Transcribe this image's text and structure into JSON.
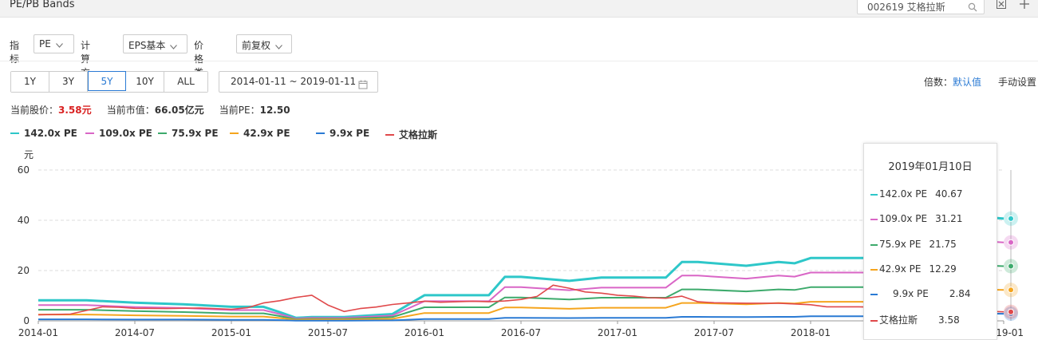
{
  "header": {
    "title": "PE/PB Bands",
    "search_value": "002619 艾格拉斯"
  },
  "controls": {
    "indicator_label": "指标",
    "indicator_value": "PE",
    "method_label": "计算方式",
    "method_value": "EPS基本",
    "price_label": "价格类型",
    "price_value": "前复权"
  },
  "ranges": [
    "1Y",
    "3Y",
    "5Y",
    "10Y",
    "ALL"
  ],
  "active_range": "5Y",
  "date_range": "2014-01-11 ~ 2019-01-11",
  "multiplier": {
    "label": "倍数：",
    "value": "默认值",
    "manual": "手动设置"
  },
  "stats": {
    "price_label": "当前股价：",
    "price_value": "3.58元",
    "mcap_label": "当前市值：",
    "mcap_value": "66.05亿元",
    "pe_label": "当前PE：",
    "pe_value": "12.50"
  },
  "tooltip": {
    "date": "2019年01月10日",
    "rows": [
      {
        "name": "142.0x PE",
        "value": "40.67"
      },
      {
        "name": "109.0x PE",
        "value": "31.21"
      },
      {
        "name": "75.9x PE",
        "value": "21.75"
      },
      {
        "name": "42.9x PE",
        "value": "12.29"
      },
      {
        "name": "9.9x PE",
        "value": "2.84"
      },
      {
        "name": "艾格拉斯",
        "value": "3.58"
      }
    ]
  },
  "colors": {
    "s142": "#2ec7c9",
    "s109": "#d966c6",
    "s76": "#3daa6c",
    "s43": "#f5a51e",
    "s10": "#2a7ad4",
    "price": "#e0494b",
    "accent": "#2a7ad4"
  },
  "chart_data": {
    "type": "line",
    "ylabel": "元",
    "ylim": [
      0,
      60
    ],
    "yticks": [
      0,
      20,
      40,
      60
    ],
    "xlim": [
      "2014-01",
      "2019-01"
    ],
    "xticks": [
      "2014-01",
      "2014-07",
      "2015-01",
      "2015-07",
      "2016-01",
      "2016-07",
      "2017-01",
      "2017-07",
      "2018-01",
      "2018-07",
      "2019-01"
    ],
    "series": [
      {
        "name": "142.0x PE",
        "x": [
          "2014-01",
          "2014-04",
          "2014-07",
          "2014-10",
          "2015-01",
          "2015-03",
          "2015-04",
          "2015-05",
          "2015-06",
          "2015-08",
          "2015-11",
          "2016-01",
          "2016-02",
          "2016-05",
          "2016-06",
          "2016-07",
          "2016-10",
          "2016-12",
          "2017-04",
          "2017-05",
          "2017-06",
          "2017-09",
          "2017-11",
          "2017-12",
          "2018-01",
          "2018-05",
          "2018-12",
          "2019-01"
        ],
        "y": [
          8.2,
          8.2,
          7.2,
          6.6,
          5.6,
          5.6,
          3.5,
          1.2,
          1.5,
          1.5,
          2.7,
          10.2,
          10.2,
          10.2,
          17.5,
          17.5,
          15.9,
          17.2,
          17.2,
          23.4,
          23.4,
          21.9,
          23.4,
          22.9,
          25.0,
          25.0,
          41.2,
          40.67
        ]
      },
      {
        "name": "109.0x PE",
        "x": [
          "2014-01",
          "2014-04",
          "2014-07",
          "2014-10",
          "2015-01",
          "2015-03",
          "2015-04",
          "2015-05",
          "2015-06",
          "2015-08",
          "2015-11",
          "2016-01",
          "2016-02",
          "2016-05",
          "2016-06",
          "2016-07",
          "2016-10",
          "2016-12",
          "2017-04",
          "2017-05",
          "2017-06",
          "2017-09",
          "2017-11",
          "2017-12",
          "2018-01",
          "2018-05",
          "2018-12",
          "2019-01"
        ],
        "y": [
          6.3,
          6.3,
          5.5,
          5.1,
          4.3,
          4.3,
          2.7,
          0.9,
          1.2,
          1.2,
          2.1,
          7.8,
          7.8,
          7.8,
          13.4,
          13.4,
          12.2,
          13.2,
          13.2,
          18.0,
          18.0,
          16.8,
          18.0,
          17.6,
          19.2,
          19.2,
          31.6,
          31.21
        ]
      },
      {
        "name": "75.9x PE",
        "x": [
          "2014-01",
          "2014-04",
          "2014-07",
          "2014-10",
          "2015-01",
          "2015-03",
          "2015-04",
          "2015-05",
          "2015-06",
          "2015-08",
          "2015-11",
          "2016-01",
          "2016-02",
          "2016-05",
          "2016-06",
          "2016-07",
          "2016-10",
          "2016-12",
          "2017-04",
          "2017-05",
          "2017-06",
          "2017-09",
          "2017-11",
          "2017-12",
          "2018-01",
          "2018-05",
          "2018-12",
          "2019-01"
        ],
        "y": [
          4.4,
          4.4,
          3.9,
          3.5,
          3.0,
          3.0,
          1.9,
          0.6,
          0.8,
          0.8,
          1.5,
          5.4,
          5.4,
          5.4,
          9.3,
          9.3,
          8.5,
          9.2,
          9.2,
          12.5,
          12.5,
          11.7,
          12.5,
          12.3,
          13.4,
          13.4,
          22.0,
          21.75
        ]
      },
      {
        "name": "42.9x PE",
        "x": [
          "2014-01",
          "2014-04",
          "2014-07",
          "2014-10",
          "2015-01",
          "2015-03",
          "2015-04",
          "2015-05",
          "2015-06",
          "2015-08",
          "2015-11",
          "2016-01",
          "2016-02",
          "2016-05",
          "2016-06",
          "2016-07",
          "2016-10",
          "2016-12",
          "2017-04",
          "2017-05",
          "2017-06",
          "2017-09",
          "2017-11",
          "2017-12",
          "2018-01",
          "2018-05",
          "2018-12",
          "2019-01"
        ],
        "y": [
          2.5,
          2.5,
          2.2,
          2.0,
          1.7,
          1.7,
          1.1,
          0.4,
          0.5,
          0.5,
          0.8,
          3.1,
          3.1,
          3.1,
          5.3,
          5.3,
          4.8,
          5.2,
          5.2,
          7.1,
          7.1,
          6.6,
          7.1,
          6.9,
          7.6,
          7.6,
          12.4,
          12.29
        ]
      },
      {
        "name": "9.9x PE",
        "x": [
          "2014-01",
          "2014-04",
          "2014-07",
          "2014-10",
          "2015-01",
          "2015-03",
          "2015-04",
          "2015-05",
          "2015-06",
          "2015-08",
          "2015-11",
          "2016-01",
          "2016-02",
          "2016-05",
          "2016-06",
          "2016-07",
          "2016-10",
          "2016-12",
          "2017-04",
          "2017-05",
          "2017-06",
          "2017-09",
          "2017-11",
          "2017-12",
          "2018-01",
          "2018-05",
          "2018-12",
          "2019-01"
        ],
        "y": [
          0.6,
          0.6,
          0.5,
          0.5,
          0.4,
          0.4,
          0.3,
          0.1,
          0.1,
          0.1,
          0.2,
          0.7,
          0.7,
          0.7,
          1.2,
          1.2,
          1.1,
          1.2,
          1.2,
          1.6,
          1.6,
          1.5,
          1.6,
          1.6,
          1.8,
          1.8,
          2.9,
          2.84
        ]
      },
      {
        "name": "艾格拉斯",
        "x": [
          "2014-01",
          "2014-03",
          "2014-05",
          "2014-06",
          "2014-07",
          "2014-09",
          "2014-11",
          "2015-01",
          "2015-02",
          "2015-03",
          "2015-04",
          "2015-05",
          "2015-06",
          "2015-07",
          "2015-08",
          "2015-09",
          "2015-10",
          "2015-11",
          "2015-12",
          "2016-01",
          "2016-02",
          "2016-03",
          "2016-04",
          "2016-05",
          "2016-06",
          "2016-07",
          "2016-08",
          "2016-09",
          "2016-10",
          "2016-11",
          "2016-12",
          "2017-01",
          "2017-02",
          "2017-03",
          "2017-04",
          "2017-05",
          "2017-06",
          "2017-07",
          "2017-09",
          "2017-11",
          "2018-01",
          "2018-02",
          "2018-04",
          "2018-06",
          "2018-08",
          "2018-10",
          "2018-12",
          "2019-01"
        ],
        "y": [
          2.4,
          2.7,
          5.6,
          5.4,
          5.0,
          4.9,
          5.1,
          4.6,
          5.2,
          7.1,
          8.0,
          9.3,
          10.2,
          6.3,
          3.7,
          4.9,
          5.5,
          6.5,
          7.1,
          7.8,
          7.4,
          7.6,
          7.8,
          7.6,
          7.9,
          8.5,
          9.7,
          14.2,
          13.0,
          11.5,
          11.0,
          10.2,
          9.8,
          9.2,
          9.0,
          9.8,
          7.6,
          7.2,
          7.0,
          7.0,
          6.4,
          5.6,
          5.6,
          5.3,
          5.0,
          4.2,
          3.8,
          3.58
        ]
      }
    ]
  }
}
